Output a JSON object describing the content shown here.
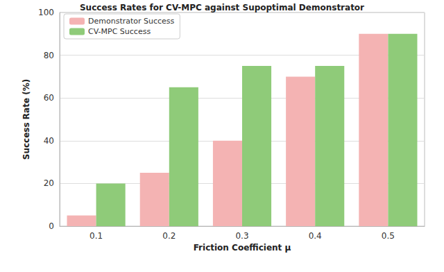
{
  "chart_data": {
    "type": "bar",
    "title": "Success Rates for CV-MPC against Supoptimal Demonstrator",
    "x_label": "Friction Coefficient μ",
    "y_label": "Success Rate (%)",
    "categories": [
      "0.1",
      "0.2",
      "0.3",
      "0.4",
      "0.5"
    ],
    "series": [
      {
        "name": "Demonstrator Success",
        "color": "#f4b3b3",
        "values": [
          5,
          25,
          40,
          70,
          90
        ]
      },
      {
        "name": "CV-MPC Success",
        "color": "#8fcb79",
        "values": [
          20,
          65,
          75,
          75,
          90
        ]
      }
    ],
    "ylim": [
      0,
      100
    ],
    "yticks": [
      0,
      20,
      40,
      60,
      80,
      100
    ],
    "grid": true,
    "legend": "upper left"
  }
}
